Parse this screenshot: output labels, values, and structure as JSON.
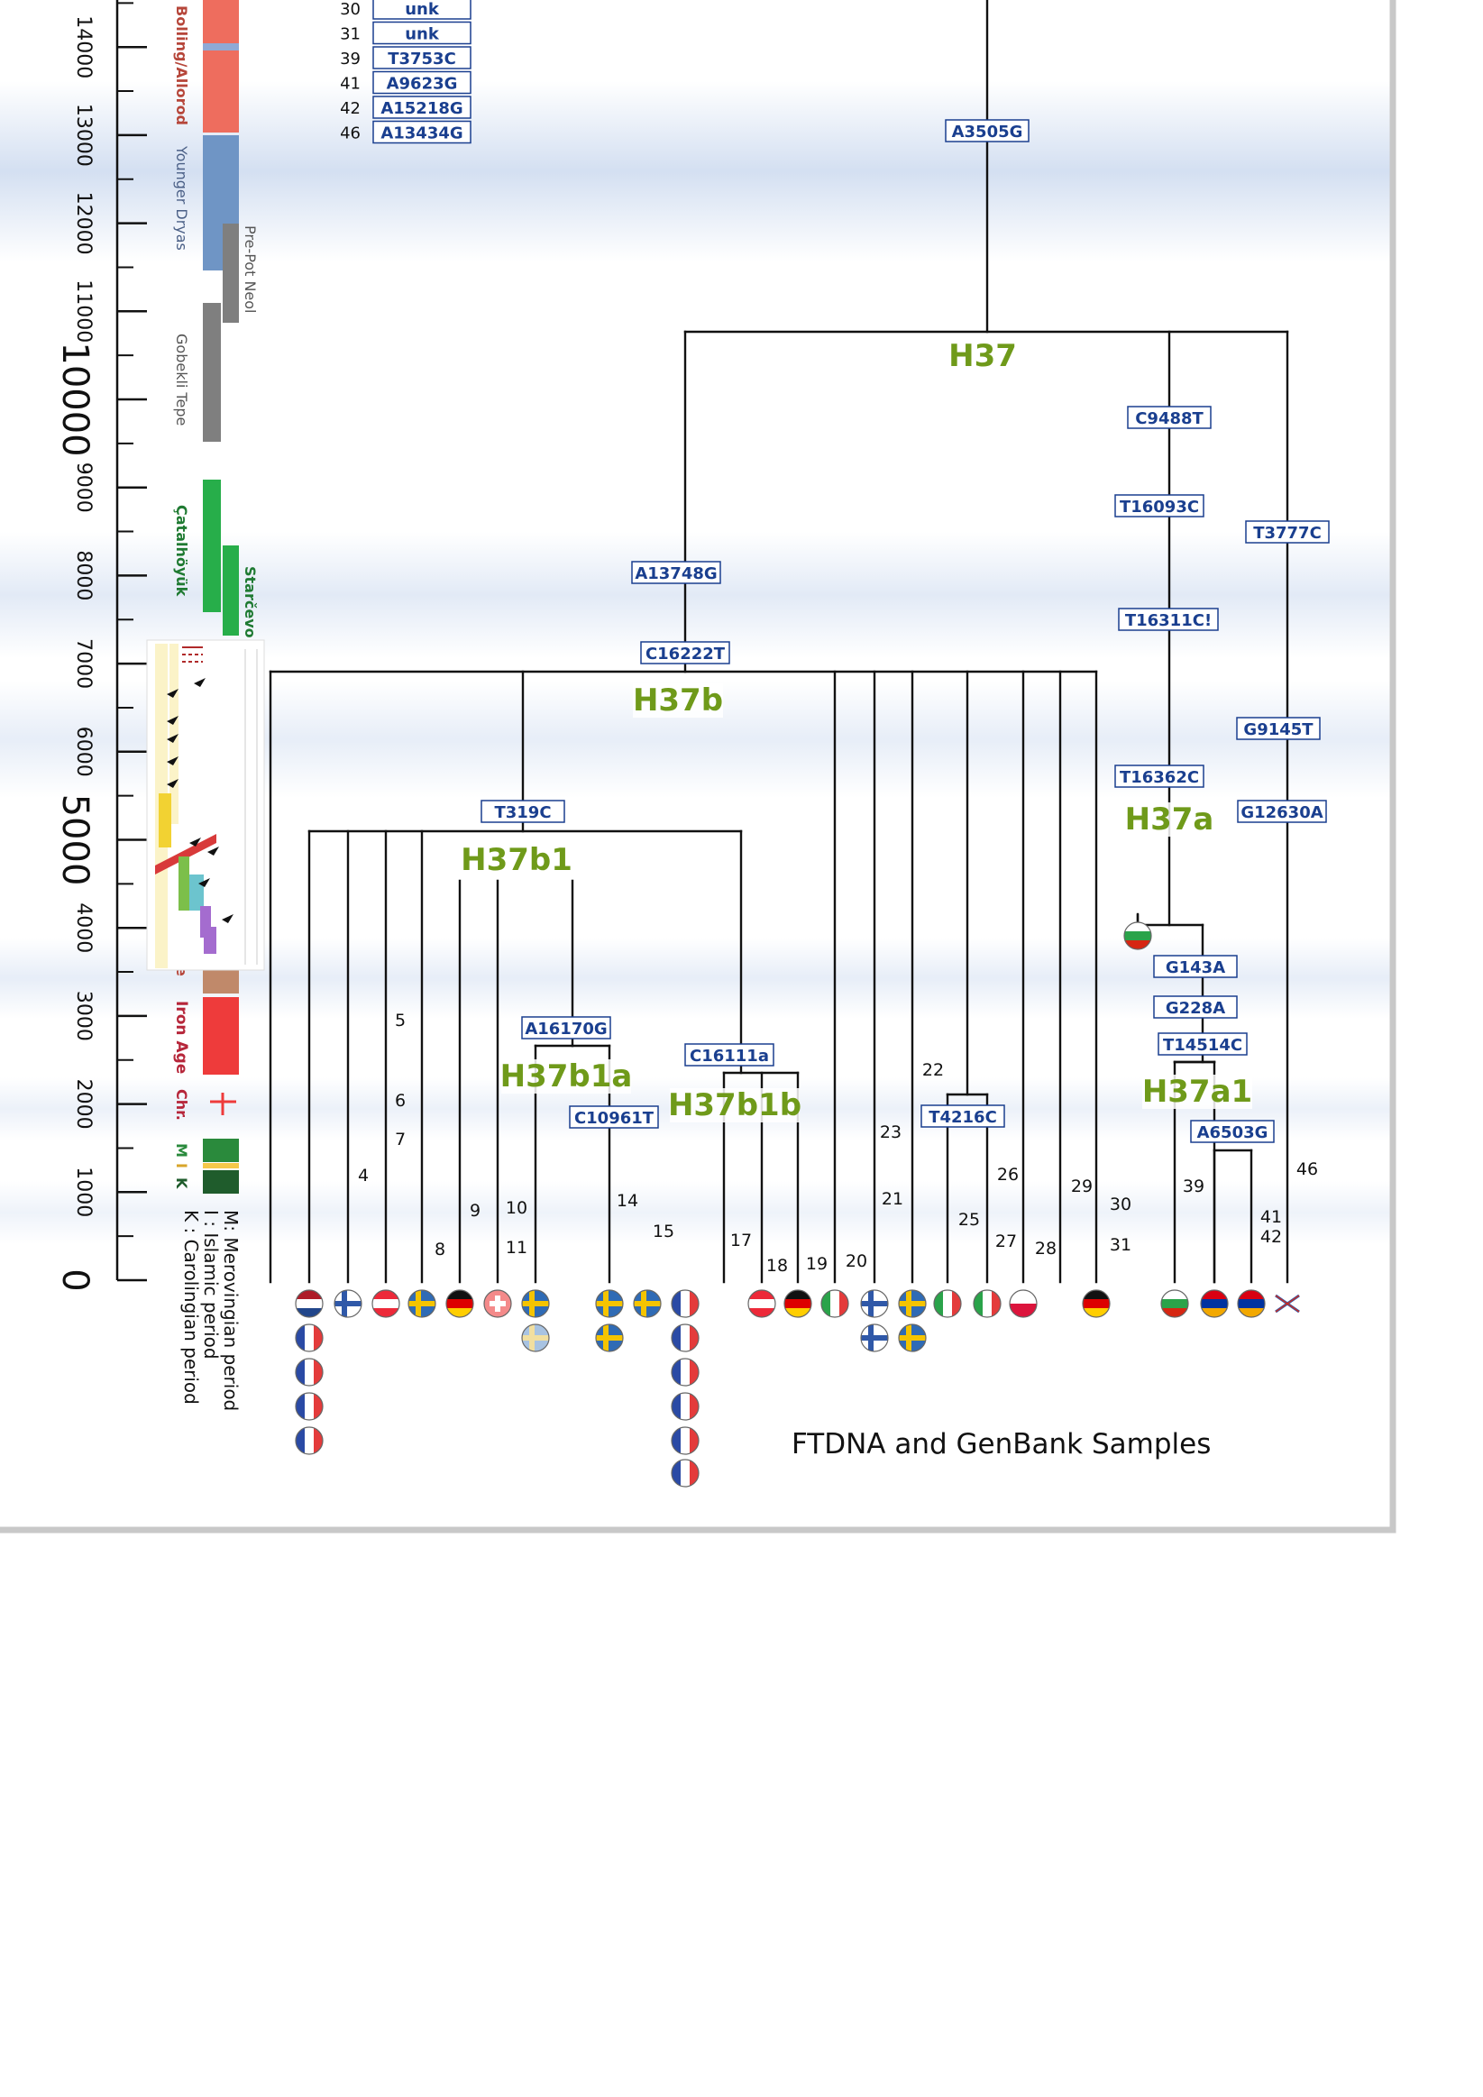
{
  "caption": "FTDNA and GenBank Samples",
  "time_axis": {
    "tick_labels": [
      "14000",
      "13000",
      "12000",
      "11000",
      "10000",
      "9000",
      "8000",
      "7000",
      "6000",
      "5000",
      "4000",
      "3000",
      "2000",
      "1000",
      "0"
    ],
    "major": [
      "10000",
      "5000",
      "0"
    ]
  },
  "periods": [
    "Bolling/Allorod",
    "Younger Dryas",
    "Pre-Pot Neol",
    "Gobekli Tepe",
    "Çatalhöyük",
    "Starčevo",
    "e",
    "Iron Age",
    "Chr."
  ],
  "period_keys": [
    "M",
    "I",
    "K"
  ],
  "period_legend": [
    "M: Merovingian period",
    "I : Islamic period",
    "K : Carolingian period"
  ],
  "key_rows": [
    {
      "num": "30",
      "label": "unk"
    },
    {
      "num": "31",
      "label": "unk"
    },
    {
      "num": "39",
      "label": "T3753C"
    },
    {
      "num": "41",
      "label": "A9623G"
    },
    {
      "num": "42",
      "label": "A15218G"
    },
    {
      "num": "46",
      "label": "A13434G"
    }
  ],
  "mutations": {
    "a3505g": "A3505G",
    "c9488t": "C9488T",
    "t16093c": "T16093C",
    "t3777c": "T3777C",
    "a13748g": "A13748G",
    "t16311c": "T16311C!",
    "c16222t": "C16222T",
    "g9145t": "G9145T",
    "t16362c": "T16362C",
    "g12630a": "G12630A",
    "t319c": "T319C",
    "g143a": "G143A",
    "g228a": "G228A",
    "a16170g": "A16170G",
    "t14514c": "T14514C",
    "c16111a": "C16111a",
    "t4216c": "T4216C",
    "c10961t": "C10961T",
    "a6503g": "A6503G"
  },
  "haplogroups": {
    "h37": "H37",
    "h37b": "H37b",
    "h37a": "H37a",
    "h37b1": "H37b1",
    "h37b1a": "H37b1a",
    "h37b1b": "H37b1b",
    "h37a1": "H37a1"
  },
  "branch_numbers": [
    "5",
    "22",
    "6",
    "7",
    "23",
    "26",
    "4",
    "29",
    "14",
    "9",
    "10",
    "21",
    "30",
    "39",
    "41",
    "42",
    "46",
    "15",
    "25",
    "17",
    "27",
    "28",
    "11",
    "8",
    "31",
    "18",
    "19",
    "20"
  ],
  "flags": [
    "Netherlands",
    "Finland",
    "Austria",
    "Sweden",
    "Germany",
    "Switzerland",
    "France",
    "Italy",
    "Poland",
    "Bulgaria",
    "Armenia",
    "United Kingdom"
  ],
  "colors": {
    "mutation_box": "#1a3f8f",
    "haplogroup": "#6f9a1a",
    "branch": "#111111",
    "bolling": "#ee6d5e",
    "younger_dryas": "#6f95c5",
    "neolithic_gray": "#7f7f7f",
    "catal": "#27ae4a",
    "iron_age": "#ee3b3b",
    "merovingian": "#2a8a3c",
    "islamic": "#f5c84a",
    "carolingian": "#1f5c2c"
  }
}
